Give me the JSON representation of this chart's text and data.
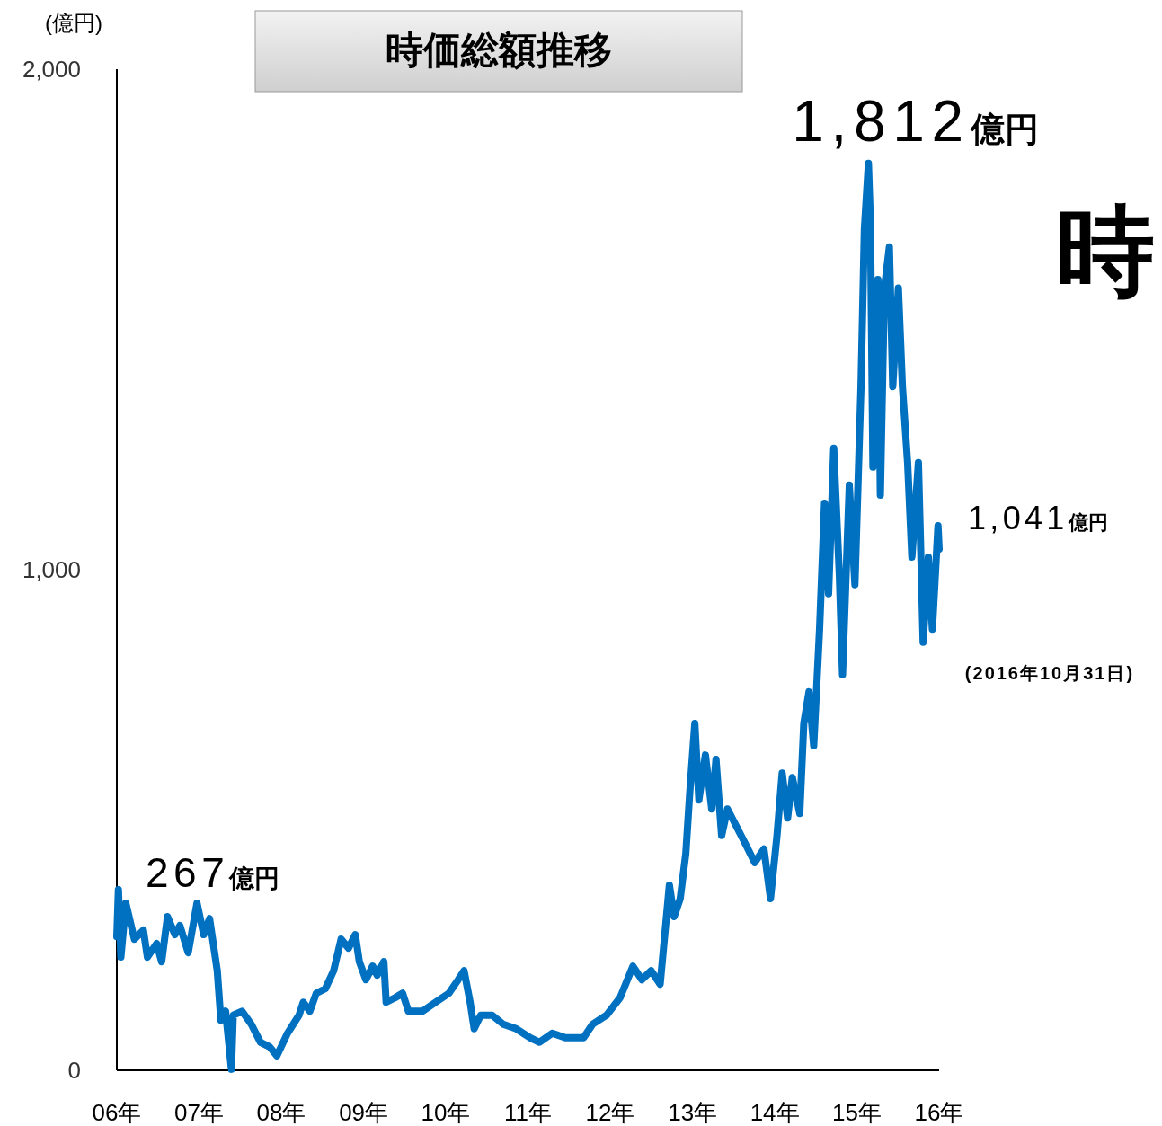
{
  "chart_data": {
    "type": "line",
    "title": "時価総額推移",
    "ylabel": "(億円)",
    "xlim": [
      "2006",
      "2016"
    ],
    "xticks": [
      {
        "value": "2006",
        "label": "06年"
      },
      {
        "value": "2007",
        "label": "07年"
      },
      {
        "value": "2008",
        "label": "08年"
      },
      {
        "value": "2009",
        "label": "09年"
      },
      {
        "value": "2010",
        "label": "10年"
      },
      {
        "value": "2011",
        "label": "11年"
      },
      {
        "value": "2012",
        "label": "12年"
      },
      {
        "value": "2013",
        "label": "13年"
      },
      {
        "value": "2014",
        "label": "14年"
      },
      {
        "value": "2015",
        "label": "15年"
      },
      {
        "value": "2016",
        "label": "16年"
      }
    ],
    "ylim": [
      0,
      2000
    ],
    "yticks": [
      0,
      {
        "value": 1000,
        "label": "1,000"
      },
      {
        "value": 2000,
        "label": "2,000"
      }
    ],
    "grid": false,
    "marker": "none",
    "line_style": "solid",
    "x": [
      "2006-01-01",
      "2006-01-08",
      "2006-01-19",
      "2006-02-10",
      "2006-03-20",
      "2006-04-29",
      "2006-05-17",
      "2006-06-27",
      "2006-07-19",
      "2006-08-14",
      "2006-09-16",
      "2006-10-08",
      "2006-11-14",
      "2006-12-23",
      "2007-01-22",
      "2007-02-17",
      "2007-03-23",
      "2007-04-08",
      "2007-04-29",
      "2007-05-25",
      "2007-06-02",
      "2007-07-11",
      "2007-08-21",
      "2007-10-01",
      "2007-11-10",
      "2007-12-13",
      "2008-01-29",
      "2008-03-20",
      "2008-04-08",
      "2008-05-07",
      "2008-06-05",
      "2008-07-15",
      "2008-08-21",
      "2008-09-23",
      "2008-10-26",
      "2008-11-25",
      "2008-12-13",
      "2009-01-11",
      "2009-02-10",
      "2009-03-02",
      "2009-04-01",
      "2009-04-11",
      "2009-05-21",
      "2009-06-23",
      "2009-07-19",
      "2009-09-20",
      "2009-11-17",
      "2010-01-15",
      "2010-02-25",
      "2010-03-23",
      "2010-04-19",
      "2010-05-07",
      "2010-06-05",
      "2010-07-26",
      "2010-09-13",
      "2010-11-10",
      "2011-01-11",
      "2011-02-21",
      "2011-04-19",
      "2011-06-16",
      "2011-09-05",
      "2011-10-15",
      "2011-12-16",
      "2012-02-14",
      "2012-04-11",
      "2012-05-21",
      "2012-07-01",
      "2012-08-10",
      "2012-09-20",
      "2012-10-11",
      "2012-11-07",
      "2012-12-02",
      "2012-12-20",
      "2013-01-11",
      "2013-01-29",
      "2013-02-27",
      "2013-03-27",
      "2013-04-15",
      "2013-05-10",
      "2013-06-05",
      "2013-07-15",
      "2013-08-25",
      "2013-10-04",
      "2013-11-14",
      "2013-12-13",
      "2014-01-11",
      "2014-02-03",
      "2014-02-27",
      "2014-03-20",
      "2014-04-22",
      "2014-05-10",
      "2014-06-02",
      "2014-06-23",
      "2014-07-19",
      "2014-08-10",
      "2014-08-28",
      "2014-09-20",
      "2014-10-15",
      "2014-10-29",
      "2014-11-28",
      "2014-12-23",
      "2015-01-19",
      "2015-02-03",
      "2015-02-21",
      "2015-03-02",
      "2015-03-13",
      "2015-04-04",
      "2015-04-15",
      "2015-05-03",
      "2015-05-25",
      "2015-06-09",
      "2015-07-04",
      "2015-07-22",
      "2015-08-14",
      "2015-09-02",
      "2015-10-01",
      "2015-10-22",
      "2015-11-14",
      "2015-12-02",
      "2015-12-27",
      "2016-01-01"
    ],
    "series": [
      {
        "color": "#0070c0",
        "values": [
          267,
          361,
          226,
          334,
          262,
          280,
          226,
          253,
          217,
          307,
          271,
          289,
          235,
          334,
          271,
          303,
          199,
          100,
          118,
          2,
          110,
          118,
          92,
          56,
          47,
          29,
          74,
          110,
          136,
          118,
          154,
          163,
          199,
          262,
          244,
          271,
          217,
          181,
          208,
          190,
          217,
          136,
          145,
          154,
          118,
          118,
          136,
          154,
          181,
          199,
          136,
          83,
          110,
          110,
          92,
          83,
          65,
          56,
          74,
          65,
          65,
          92,
          110,
          145,
          208,
          181,
          199,
          172,
          370,
          307,
          343,
          433,
          558,
          693,
          540,
          630,
          522,
          621,
          469,
          522,
          487,
          451,
          415,
          442,
          343,
          469,
          594,
          504,
          585,
          513,
          693,
          756,
          648,
          881,
          1133,
          952,
          1243,
          988,
          790,
          1169,
          970,
          1366,
          1680,
          1812,
          1692,
          1205,
          1580,
          1149,
          1563,
          1645,
          1366,
          1563,
          1366,
          1214,
          1025,
          1214,
          855,
          1025,
          881,
          1088,
          1041
        ]
      }
    ],
    "annotations": [
      {
        "text": "1,812億円",
        "x": "2015-02-21",
        "y": 1812
      },
      {
        "text": "267億円",
        "x": "2006-01-01",
        "y": 267
      },
      {
        "text": "1,041億円",
        "x": "2016-01-01",
        "y": 1041
      },
      "(2016年10月31日)",
      "時"
    ]
  }
}
